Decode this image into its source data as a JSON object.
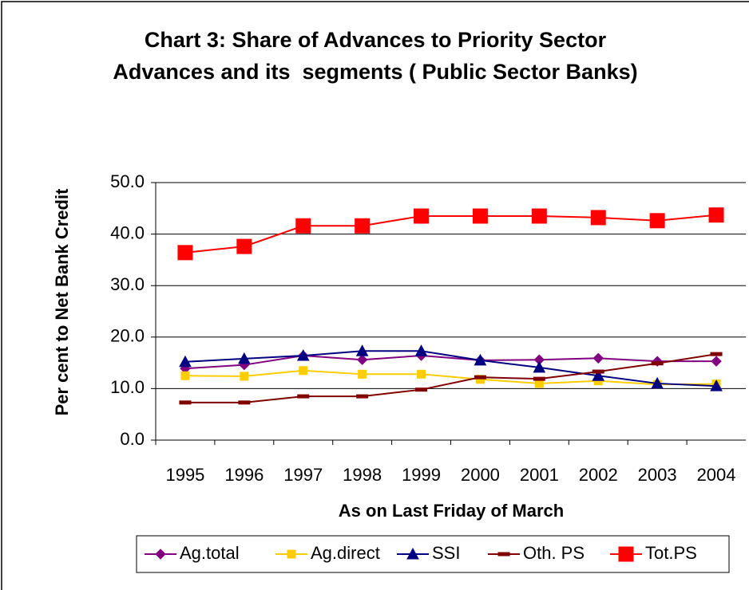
{
  "chart_data": {
    "type": "line",
    "title": "Chart 3: Share of Advances to Priority Sector Advances and its  segments ( Public Sector Banks)",
    "x_label": "As on Last Friday of March",
    "y_label": "Per cent to Net Bank Credit",
    "categories": [
      "1995",
      "1996",
      "1997",
      "1998",
      "1999",
      "2000",
      "2001",
      "2002",
      "2003",
      "2004"
    ],
    "ylim": [
      0,
      50
    ],
    "yticks": [
      {
        "value": 0,
        "label": "0.0"
      },
      {
        "value": 10,
        "label": "10.0"
      },
      {
        "value": 20,
        "label": "20.0"
      },
      {
        "value": 30,
        "label": "30.0"
      },
      {
        "value": 40,
        "label": "40.0"
      },
      {
        "value": 50,
        "label": "50.0"
      }
    ],
    "grid": true,
    "legend": "bottom",
    "series": [
      {
        "name": "Ag.total",
        "color": "#800080",
        "marker": "diamond",
        "values": [
          13.9,
          14.6,
          16.4,
          15.6,
          16.4,
          15.5,
          15.6,
          15.9,
          15.3,
          15.3
        ]
      },
      {
        "name": "Ag.direct",
        "color": "#ffcc00",
        "marker": "square",
        "values": [
          12.5,
          12.4,
          13.5,
          12.8,
          12.8,
          11.8,
          11.0,
          11.5,
          10.8,
          10.9
        ]
      },
      {
        "name": "SSI",
        "color": "#000080",
        "marker": "triangle",
        "values": [
          15.2,
          15.8,
          16.4,
          17.3,
          17.3,
          15.5,
          14.1,
          12.5,
          11.0,
          10.5
        ]
      },
      {
        "name": "Oth. PS",
        "color": "#800000",
        "marker": "dash",
        "values": [
          7.3,
          7.3,
          8.5,
          8.5,
          9.8,
          12.2,
          11.9,
          13.3,
          14.9,
          16.7
        ]
      },
      {
        "name": "Tot.PS",
        "color": "#ff0000",
        "marker": "bigsquare",
        "values": [
          36.4,
          37.6,
          41.6,
          41.6,
          43.5,
          43.5,
          43.5,
          43.2,
          42.6,
          43.7
        ]
      }
    ]
  }
}
